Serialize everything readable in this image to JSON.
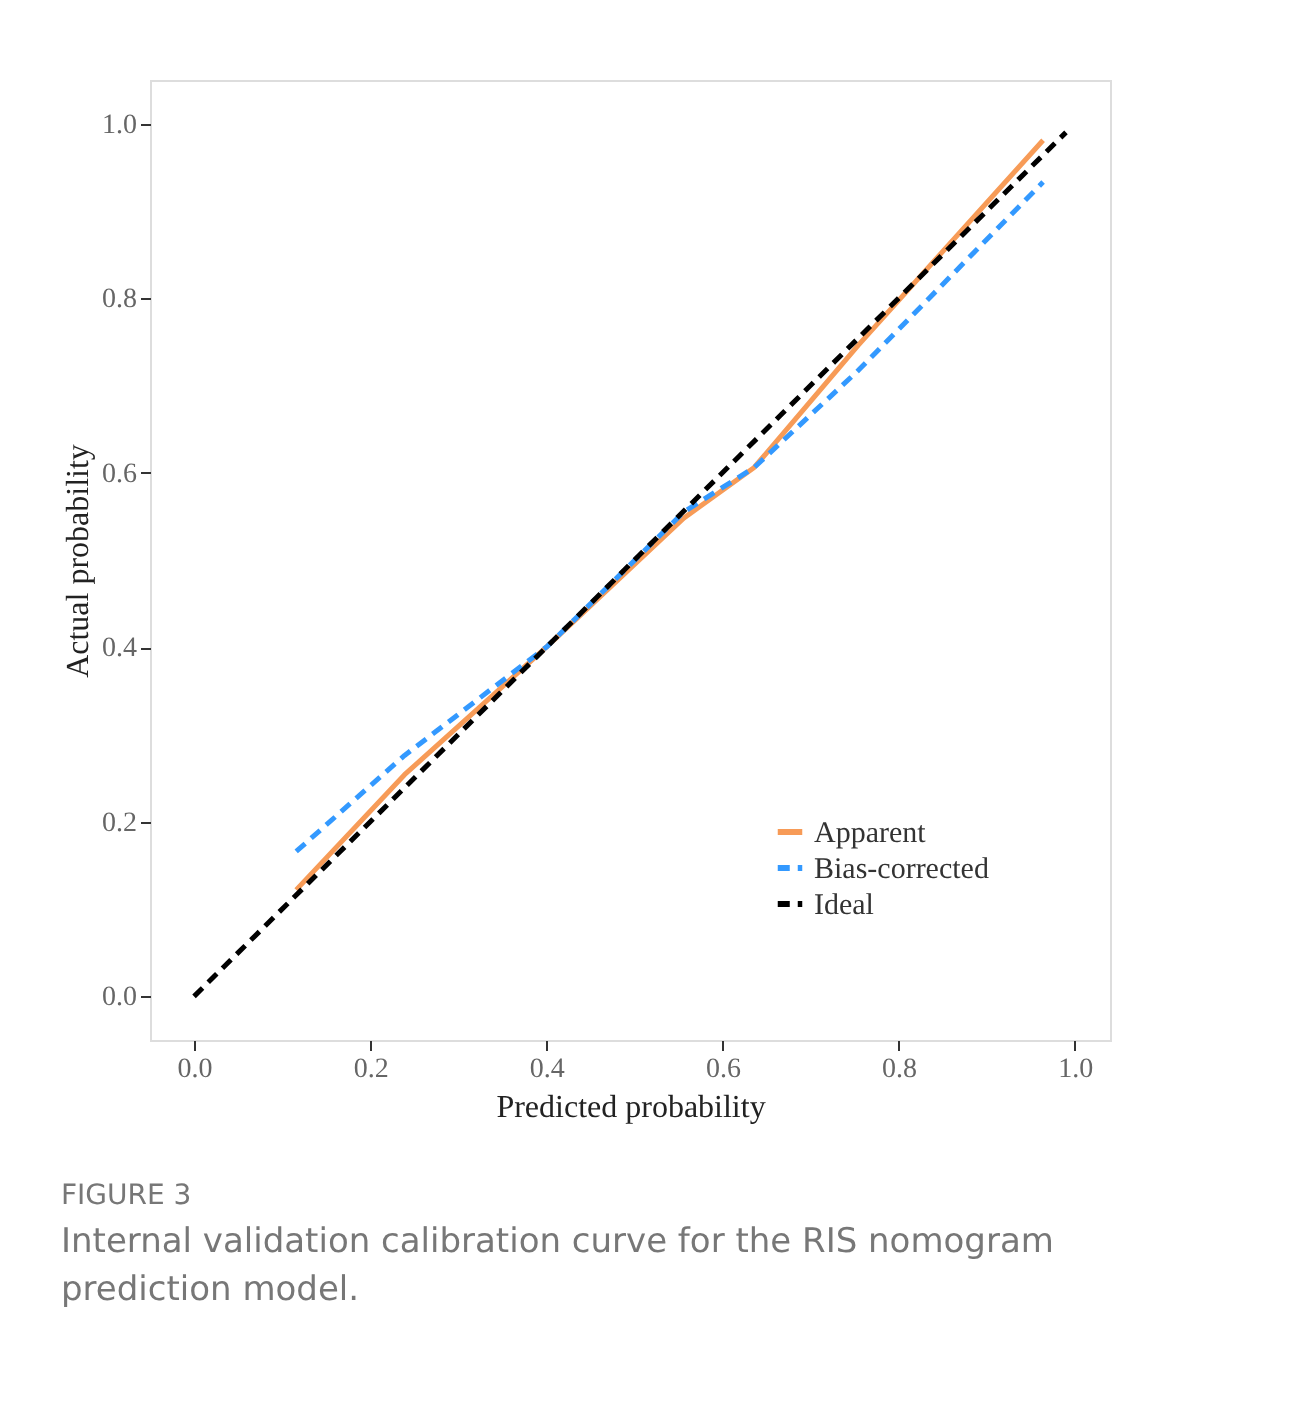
{
  "chart_data": {
    "type": "line",
    "xlabel": "Predicted probability",
    "ylabel": "Actual probability",
    "xlim": [
      -0.05,
      1.04
    ],
    "ylim": [
      -0.05,
      1.05
    ],
    "xticks": [
      {
        "value": 0,
        "label": "0.0"
      },
      0.2,
      0.4,
      0.6,
      0.8,
      {
        "value": 1,
        "label": "1.0"
      }
    ],
    "yticks": [
      {
        "value": 0,
        "label": "0.0"
      },
      0.2,
      0.4,
      0.6,
      0.8,
      {
        "value": 1,
        "label": "1.0"
      }
    ],
    "series": [
      {
        "name": "Apparent",
        "color": "#f79b57",
        "line_style": "solid",
        "x": [
          0.116,
          0.239,
          0.401,
          0.556,
          0.636,
          0.754,
          0.964
        ],
        "values": [
          0.122,
          0.254,
          0.401,
          0.548,
          0.606,
          0.746,
          0.981
        ]
      },
      {
        "name": "Bias-corrected",
        "color": "#3399ff",
        "line_style": "dashed",
        "x": [
          0.116,
          0.239,
          0.401,
          0.556,
          0.636,
          0.754,
          0.964
        ],
        "values": [
          0.166,
          0.276,
          0.401,
          0.555,
          0.606,
          0.717,
          0.933
        ]
      },
      {
        "name": "Ideal",
        "color": "#000000",
        "line_style": "dashed",
        "x": [
          0,
          0.99
        ],
        "values": [
          0,
          0.99
        ]
      }
    ],
    "legend": "bottom right",
    "grid": false,
    "annotations": [
      "FIGURE 3",
      "Internal validation calibration curve for the RIS nomogram prediction model."
    ]
  }
}
